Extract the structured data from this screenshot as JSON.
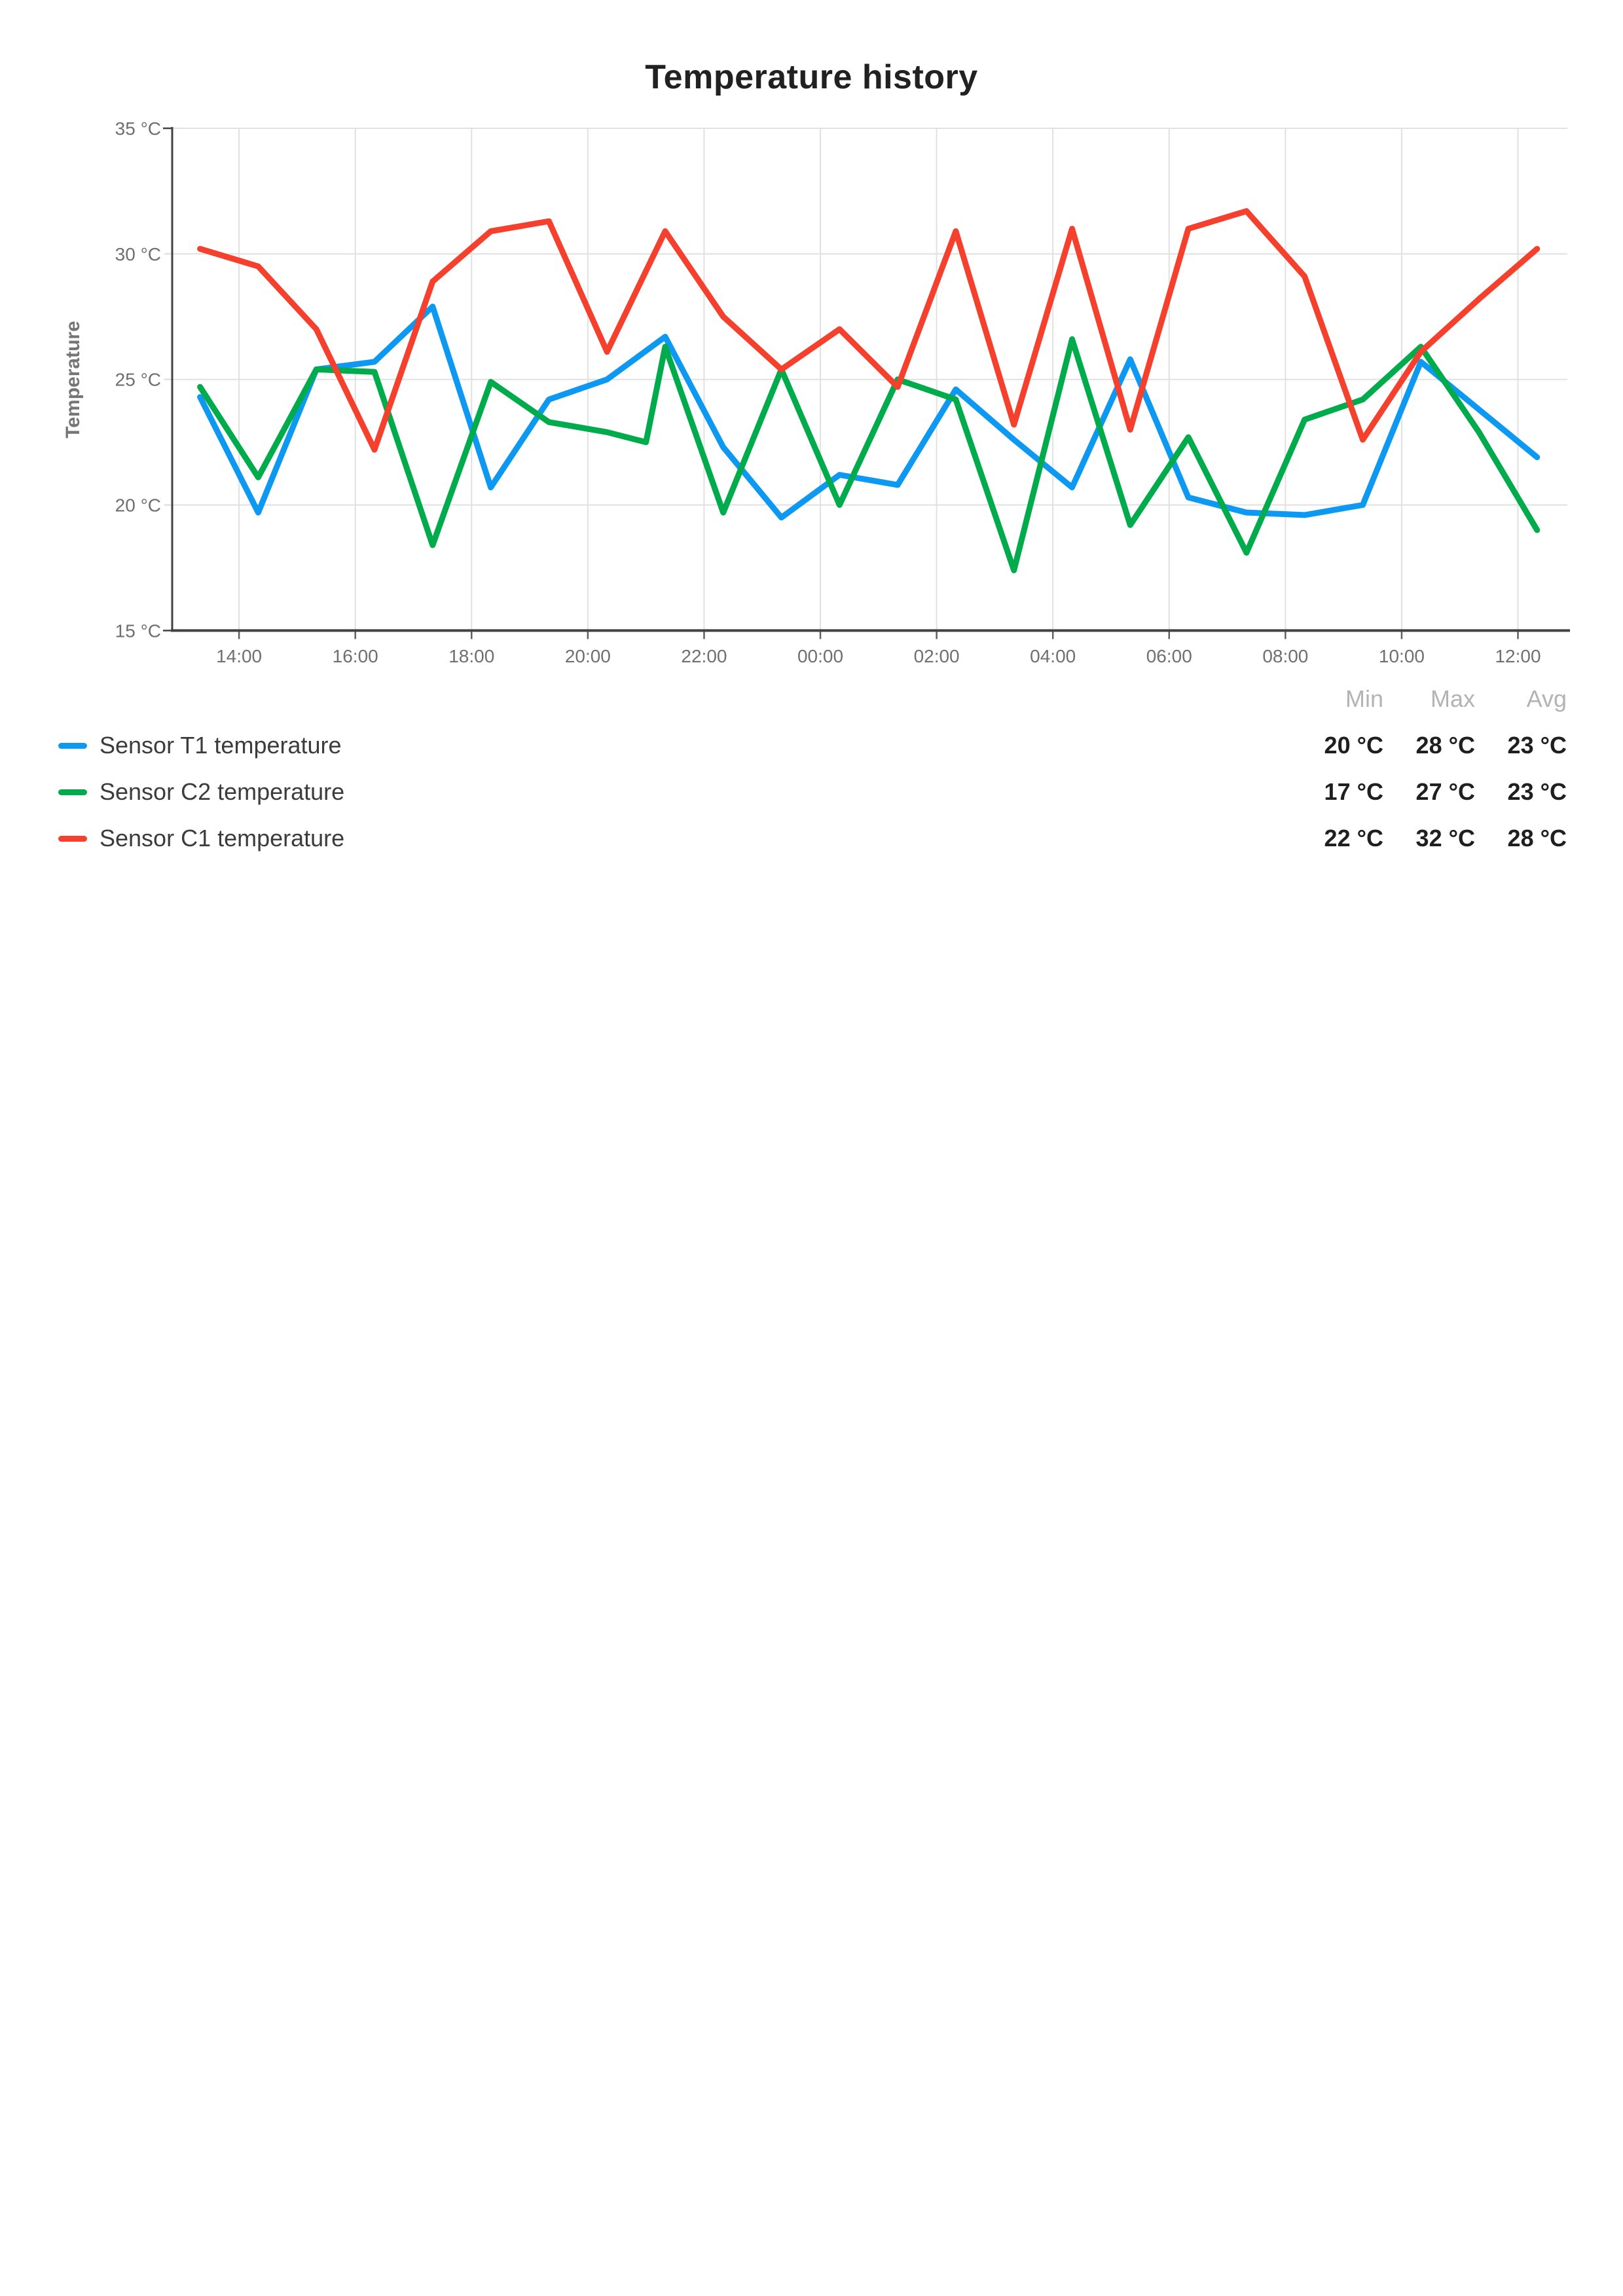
{
  "title": "Temperature history",
  "y_axis": {
    "label": "Temperature",
    "tick_labels": [
      "35 °C",
      "30 °C",
      "25 °C",
      "20 °C",
      "15 °C"
    ],
    "tick_values": [
      35,
      30,
      25,
      20,
      15
    ]
  },
  "x_axis": {
    "tick_labels": [
      "14:00",
      "16:00",
      "18:00",
      "20:00",
      "22:00",
      "00:00",
      "02:00",
      "04:00",
      "06:00",
      "08:00",
      "10:00",
      "12:00"
    ],
    "tick_hours": [
      14,
      16,
      18,
      20,
      22,
      24,
      26,
      28,
      30,
      32,
      34,
      36
    ]
  },
  "legend": {
    "stat_headers": [
      "Min",
      "Max",
      "Avg"
    ],
    "rows": [
      {
        "label": "Sensor T1 temperature",
        "color": "#0d99f2",
        "min": "20 °C",
        "max": "28 °C",
        "avg": "23 °C"
      },
      {
        "label": "Sensor C2 temperature",
        "color": "#00ab4b",
        "min": "17 °C",
        "max": "27 °C",
        "avg": "23 °C"
      },
      {
        "label": "Sensor C1 temperature",
        "color": "#f5402d",
        "min": "22 °C",
        "max": "32 °C",
        "avg": "28 °C"
      }
    ]
  },
  "chart_data": {
    "type": "line",
    "title": "Temperature history",
    "xlabel": "",
    "ylabel": "Temperature",
    "x_range_hours": [
      12.85,
      36.85
    ],
    "ylim": [
      15,
      35
    ],
    "grid": true,
    "legend_position": "bottom",
    "series": [
      {
        "name": "Sensor T1 temperature",
        "color": "#0d99f2",
        "times": [
          "13:20",
          "14:20",
          "15:20",
          "16:20",
          "17:20",
          "18:20",
          "19:20",
          "20:20",
          "21:20",
          "22:20",
          "23:20",
          "00:20",
          "01:20",
          "02:20",
          "03:20",
          "04:20",
          "05:20",
          "06:20",
          "07:20",
          "08:20",
          "09:20",
          "10:20",
          "11:20",
          "12:20"
        ],
        "x_hours": [
          13.33,
          14.33,
          15.33,
          16.33,
          17.33,
          18.33,
          19.33,
          20.33,
          21.33,
          22.33,
          23.33,
          24.33,
          25.33,
          26.33,
          27.33,
          28.33,
          29.33,
          30.33,
          31.33,
          32.33,
          33.33,
          34.33,
          35.33,
          36.33
        ],
        "values": [
          24.3,
          19.7,
          25.4,
          25.7,
          27.9,
          20.7,
          24.2,
          25.0,
          26.7,
          22.3,
          19.5,
          21.2,
          20.8,
          24.6,
          22.6,
          20.7,
          25.8,
          20.3,
          19.7,
          19.6,
          20.0,
          25.7,
          23.8,
          21.9
        ],
        "stats": {
          "min": "20 °C",
          "max": "28 °C",
          "avg": "23 °C"
        }
      },
      {
        "name": "Sensor C2 temperature",
        "color": "#00ab4b",
        "times": [
          "13:20",
          "14:20",
          "15:20",
          "16:20",
          "17:20",
          "18:20",
          "19:20",
          "20:20",
          "21:00",
          "21:20",
          "22:20",
          "23:20",
          "00:20",
          "01:20",
          "02:20",
          "03:20",
          "04:20",
          "05:20",
          "06:20",
          "07:20",
          "08:20",
          "09:20",
          "10:20",
          "11:20",
          "12:20"
        ],
        "x_hours": [
          13.33,
          14.33,
          15.33,
          16.33,
          17.33,
          18.33,
          19.33,
          20.33,
          21.0,
          21.33,
          22.33,
          23.33,
          24.33,
          25.33,
          26.33,
          27.33,
          28.33,
          29.33,
          30.33,
          31.33,
          32.33,
          33.33,
          34.33,
          35.33,
          36.33
        ],
        "values": [
          24.7,
          21.1,
          25.4,
          25.3,
          18.4,
          24.9,
          23.3,
          22.9,
          22.5,
          26.3,
          19.7,
          25.4,
          20.0,
          25.0,
          24.2,
          17.4,
          26.6,
          19.2,
          22.7,
          18.1,
          23.4,
          24.2,
          26.3,
          22.9,
          19.0
        ],
        "stats": {
          "min": "17 °C",
          "max": "27 °C",
          "avg": "23 °C"
        }
      },
      {
        "name": "Sensor C1 temperature",
        "color": "#f5402d",
        "times": [
          "13:20",
          "14:20",
          "15:20",
          "16:20",
          "17:20",
          "18:20",
          "19:20",
          "20:20",
          "21:20",
          "22:20",
          "23:20",
          "00:20",
          "01:20",
          "02:20",
          "03:20",
          "04:20",
          "05:20",
          "06:20",
          "07:20",
          "08:20",
          "09:20",
          "10:20",
          "11:20",
          "12:20"
        ],
        "x_hours": [
          13.33,
          14.33,
          15.33,
          16.33,
          17.33,
          18.33,
          19.33,
          20.33,
          21.33,
          22.33,
          23.33,
          24.33,
          25.33,
          26.33,
          27.33,
          28.33,
          29.33,
          30.33,
          31.33,
          32.33,
          33.33,
          34.33,
          35.33,
          36.33
        ],
        "values": [
          30.2,
          29.5,
          27.0,
          22.2,
          28.9,
          30.9,
          31.3,
          26.1,
          30.9,
          27.5,
          25.4,
          27.0,
          24.7,
          30.9,
          23.2,
          31.0,
          23.0,
          31.0,
          31.7,
          29.1,
          22.6,
          26.1,
          28.2,
          30.2
        ],
        "stats": {
          "min": "22 °C",
          "max": "32 °C",
          "avg": "28 °C"
        }
      }
    ]
  },
  "colors": {
    "grid": "#e1e1e1",
    "axis": "#424242",
    "tick_mark": "#616161",
    "tick_text": "#6f6f6f",
    "title_text": "#212121",
    "legend_header_text": "#b3b3b3",
    "legend_label_text": "#3c3c3c",
    "legend_value_text": "#1f1f1f"
  }
}
